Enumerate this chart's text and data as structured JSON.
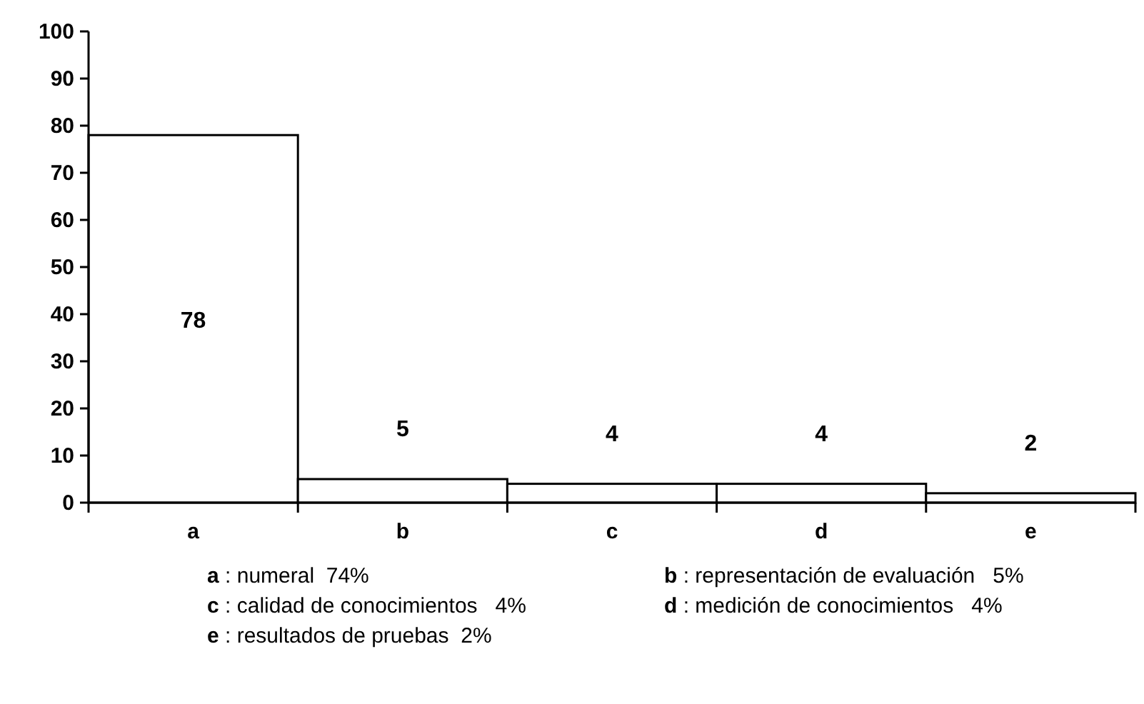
{
  "chart_data": {
    "type": "bar",
    "categories": [
      "a",
      "b",
      "c",
      "d",
      "e"
    ],
    "values": [
      78,
      5,
      4,
      4,
      2
    ],
    "color": "#ffffff",
    "ylim": [
      0,
      100
    ],
    "yticks": [
      0,
      10,
      20,
      30,
      40,
      50,
      60,
      70,
      80,
      90,
      100
    ],
    "grid": false,
    "data_labels": true,
    "annotations": [
      "a : numeral  74%",
      "b : representación de evaluación   5%",
      "c : calidad de conocimientos   4%",
      "d : medición de conocimientos   4%",
      "e : resultados de pruebas  2%"
    ]
  }
}
